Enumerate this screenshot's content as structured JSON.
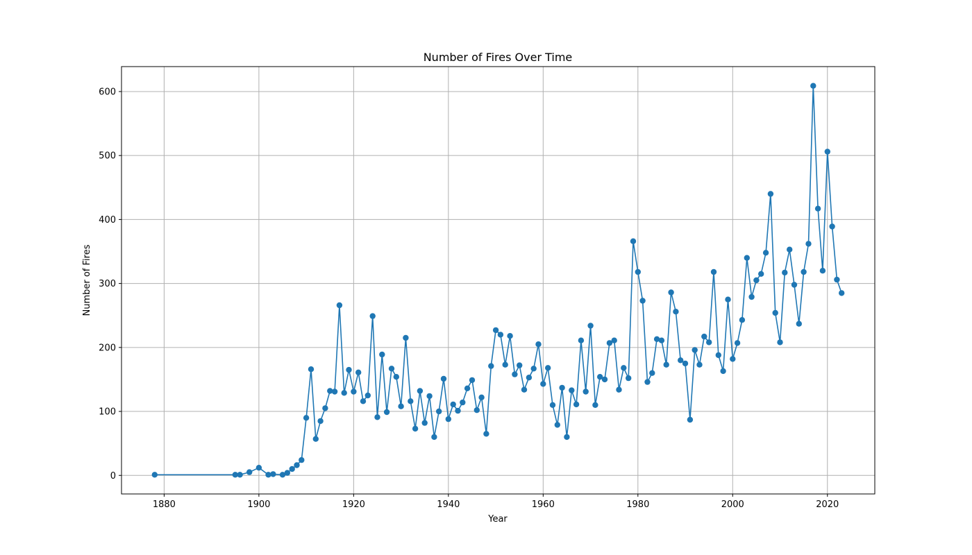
{
  "chart_data": {
    "type": "line",
    "title": "Number of Fires Over Time",
    "xlabel": "Year",
    "ylabel": "Number of Fires",
    "xlim": [
      1871,
      2030
    ],
    "ylim": [
      -29,
      639
    ],
    "xticks": [
      "1880",
      "1900",
      "1920",
      "1940",
      "1960",
      "1980",
      "2000",
      "2020"
    ],
    "yticks": [
      "0",
      "100",
      "200",
      "300",
      "400",
      "500",
      "600"
    ],
    "grid": true,
    "marker": "circle",
    "series": [
      {
        "color": "#1f77b4",
        "points": [
          [
            1878,
            1
          ],
          [
            1895,
            1
          ],
          [
            1896,
            1
          ],
          [
            1898,
            5
          ],
          [
            1900,
            12
          ],
          [
            1902,
            1
          ],
          [
            1903,
            2
          ],
          [
            1905,
            1
          ],
          [
            1906,
            4
          ],
          [
            1907,
            10
          ],
          [
            1908,
            16
          ],
          [
            1909,
            24
          ],
          [
            1910,
            90
          ],
          [
            1911,
            166
          ],
          [
            1912,
            57
          ],
          [
            1913,
            85
          ],
          [
            1914,
            105
          ],
          [
            1915,
            132
          ],
          [
            1916,
            131
          ],
          [
            1917,
            266
          ],
          [
            1918,
            129
          ],
          [
            1919,
            165
          ],
          [
            1920,
            131
          ],
          [
            1921,
            161
          ],
          [
            1922,
            116
          ],
          [
            1923,
            125
          ],
          [
            1924,
            249
          ],
          [
            1925,
            91
          ],
          [
            1926,
            189
          ],
          [
            1927,
            99
          ],
          [
            1928,
            167
          ],
          [
            1929,
            154
          ],
          [
            1930,
            108
          ],
          [
            1931,
            215
          ],
          [
            1932,
            116
          ],
          [
            1933,
            73
          ],
          [
            1934,
            132
          ],
          [
            1935,
            82
          ],
          [
            1936,
            124
          ],
          [
            1937,
            60
          ],
          [
            1938,
            100
          ],
          [
            1939,
            151
          ],
          [
            1940,
            88
          ],
          [
            1941,
            111
          ],
          [
            1942,
            101
          ],
          [
            1943,
            114
          ],
          [
            1944,
            136
          ],
          [
            1945,
            149
          ],
          [
            1946,
            102
          ],
          [
            1947,
            122
          ],
          [
            1948,
            65
          ],
          [
            1949,
            171
          ],
          [
            1950,
            227
          ],
          [
            1951,
            220
          ],
          [
            1952,
            173
          ],
          [
            1953,
            218
          ],
          [
            1954,
            158
          ],
          [
            1955,
            172
          ],
          [
            1956,
            134
          ],
          [
            1957,
            153
          ],
          [
            1958,
            167
          ],
          [
            1959,
            205
          ],
          [
            1960,
            143
          ],
          [
            1961,
            168
          ],
          [
            1962,
            110
          ],
          [
            1963,
            79
          ],
          [
            1964,
            137
          ],
          [
            1965,
            60
          ],
          [
            1966,
            133
          ],
          [
            1967,
            111
          ],
          [
            1968,
            211
          ],
          [
            1969,
            131
          ],
          [
            1970,
            234
          ],
          [
            1971,
            110
          ],
          [
            1972,
            154
          ],
          [
            1973,
            150
          ],
          [
            1974,
            207
          ],
          [
            1975,
            211
          ],
          [
            1976,
            134
          ],
          [
            1977,
            168
          ],
          [
            1978,
            152
          ],
          [
            1979,
            366
          ],
          [
            1980,
            318
          ],
          [
            1981,
            273
          ],
          [
            1982,
            146
          ],
          [
            1983,
            160
          ],
          [
            1984,
            213
          ],
          [
            1985,
            211
          ],
          [
            1986,
            173
          ],
          [
            1987,
            286
          ],
          [
            1988,
            256
          ],
          [
            1989,
            180
          ],
          [
            1990,
            175
          ],
          [
            1991,
            87
          ],
          [
            1992,
            196
          ],
          [
            1993,
            173
          ],
          [
            1994,
            217
          ],
          [
            1995,
            208
          ],
          [
            1996,
            318
          ],
          [
            1997,
            188
          ],
          [
            1998,
            163
          ],
          [
            1999,
            275
          ],
          [
            2000,
            182
          ],
          [
            2001,
            207
          ],
          [
            2002,
            243
          ],
          [
            2003,
            340
          ],
          [
            2004,
            279
          ],
          [
            2005,
            305
          ],
          [
            2006,
            315
          ],
          [
            2007,
            348
          ],
          [
            2008,
            440
          ],
          [
            2009,
            254
          ],
          [
            2010,
            208
          ],
          [
            2011,
            317
          ],
          [
            2012,
            353
          ],
          [
            2013,
            298
          ],
          [
            2014,
            237
          ],
          [
            2015,
            318
          ],
          [
            2016,
            362
          ],
          [
            2017,
            609
          ],
          [
            2018,
            417
          ],
          [
            2019,
            320
          ],
          [
            2020,
            506
          ],
          [
            2021,
            389
          ],
          [
            2022,
            306
          ],
          [
            2023,
            285
          ]
        ]
      }
    ]
  }
}
